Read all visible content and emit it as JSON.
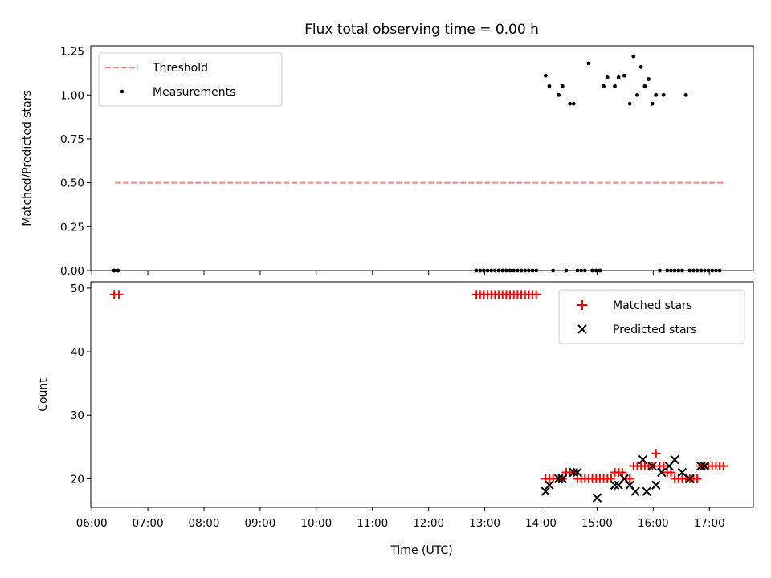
{
  "chart_data": [
    {
      "type": "line+scatter",
      "title": "Flux total observing time = 0.00 h",
      "ylabel": "Matched/Predicted stars",
      "xlabel": "",
      "xlim": [
        "05:59",
        "17:47"
      ],
      "ylim": [
        0,
        1.28
      ],
      "yticks": [
        "0.00",
        "0.25",
        "0.50",
        "0.75",
        "1.00",
        "1.25"
      ],
      "legend": {
        "placement": "top-left",
        "entries": [
          {
            "name": "Threshold",
            "color": "#ff7f7f",
            "style": "dashed"
          },
          {
            "name": "Measurements",
            "color": "#000000",
            "style": "dot"
          }
        ]
      },
      "series": [
        {
          "name": "Threshold",
          "type": "line",
          "color": "#ff7f7f",
          "x": [
            "06:25",
            "17:15"
          ],
          "y": [
            0.5,
            0.5
          ]
        },
        {
          "name": "Measurements",
          "type": "scatter",
          "color": "#000000",
          "x": [
            "06:24",
            "06:28",
            "12:51",
            "12:55",
            "12:59",
            "13:03",
            "13:07",
            "13:11",
            "13:15",
            "13:19",
            "13:23",
            "13:27",
            "13:31",
            "13:35",
            "13:39",
            "13:43",
            "13:47",
            "13:51",
            "13:55",
            "14:05",
            "14:09",
            "14:13",
            "14:19",
            "14:23",
            "14:27",
            "14:31",
            "14:35",
            "14:39",
            "14:43",
            "14:47",
            "14:51",
            "14:55",
            "14:59",
            "15:03",
            "15:07",
            "15:11",
            "15:19",
            "15:23",
            "15:29",
            "15:35",
            "15:39",
            "15:43",
            "15:47",
            "15:51",
            "15:55",
            "15:59",
            "16:03",
            "16:07",
            "16:11",
            "16:15",
            "16:19",
            "16:23",
            "16:27",
            "16:31",
            "16:35",
            "16:39",
            "16:43",
            "16:47",
            "16:51",
            "16:55",
            "16:59",
            "17:03",
            "17:07",
            "17:11"
          ],
          "y": [
            0,
            0,
            0,
            0,
            0,
            0,
            0,
            0,
            0,
            0,
            0,
            0,
            0,
            0,
            0,
            0,
            0,
            0,
            0,
            1.11,
            1.05,
            0,
            1.0,
            1.05,
            0,
            0.95,
            0.95,
            0,
            0,
            0,
            1.18,
            0,
            0,
            0,
            1.05,
            1.1,
            1.05,
            1.1,
            1.11,
            0.95,
            1.22,
            1.0,
            1.16,
            1.05,
            1.09,
            0.95,
            1.0,
            0,
            1.0,
            0,
            0,
            0,
            0,
            0,
            1.0,
            0,
            0,
            0,
            0,
            0,
            0,
            0,
            0,
            0
          ]
        }
      ]
    },
    {
      "type": "scatter",
      "title": "",
      "ylabel": "Count",
      "xlabel": "Time (UTC)",
      "xlim": [
        "05:59",
        "17:47"
      ],
      "ylim": [
        15.5,
        51
      ],
      "yticks": [
        "20",
        "30",
        "40",
        "50"
      ],
      "xticks": [
        "06:00",
        "07:00",
        "08:00",
        "09:00",
        "10:00",
        "11:00",
        "12:00",
        "13:00",
        "14:00",
        "15:00",
        "16:00",
        "17:00"
      ],
      "legend": {
        "placement": "top-right",
        "entries": [
          {
            "name": "Matched stars",
            "color": "#ff0000",
            "marker": "+"
          },
          {
            "name": "Predicted stars",
            "color": "#000000",
            "marker": "x"
          }
        ]
      },
      "series": [
        {
          "name": "Matched stars",
          "type": "scatter",
          "marker": "+",
          "color": "#ff0000",
          "x": [
            "06:24",
            "06:29",
            "12:51",
            "12:55",
            "12:59",
            "13:03",
            "13:07",
            "13:11",
            "13:15",
            "13:19",
            "13:23",
            "13:27",
            "13:31",
            "13:35",
            "13:39",
            "13:43",
            "13:47",
            "13:51",
            "13:55",
            "14:05",
            "14:09",
            "14:13",
            "14:19",
            "14:23",
            "14:27",
            "14:31",
            "14:35",
            "14:39",
            "14:43",
            "14:47",
            "14:51",
            "14:55",
            "14:59",
            "15:03",
            "15:07",
            "15:11",
            "15:15",
            "15:19",
            "15:23",
            "15:27",
            "15:31",
            "15:35",
            "15:39",
            "15:43",
            "15:47",
            "15:51",
            "15:55",
            "15:59",
            "16:03",
            "16:07",
            "16:11",
            "16:15",
            "16:19",
            "16:23",
            "16:27",
            "16:31",
            "16:35",
            "16:39",
            "16:43",
            "16:47",
            "16:51",
            "16:55",
            "16:59",
            "17:03",
            "17:07",
            "17:11",
            "17:15"
          ],
          "y": [
            49,
            49,
            49,
            49,
            49,
            49,
            49,
            49,
            49,
            49,
            49,
            49,
            49,
            49,
            49,
            49,
            49,
            49,
            49,
            20,
            20,
            20,
            20,
            20,
            21,
            21,
            21,
            20,
            20,
            20,
            20,
            20,
            20,
            20,
            20,
            20,
            20,
            21,
            21,
            21,
            20,
            20,
            22,
            22,
            22,
            22,
            22,
            22,
            24,
            22,
            22,
            21,
            21,
            20,
            20,
            20,
            20,
            20,
            20,
            20,
            22,
            22,
            22,
            22,
            22,
            22,
            22
          ]
        },
        {
          "name": "Predicted stars",
          "type": "scatter",
          "marker": "x",
          "color": "#000000",
          "x": [
            "14:05",
            "14:09",
            "14:19",
            "14:23",
            "14:35",
            "14:39",
            "15:00",
            "15:19",
            "15:23",
            "15:29",
            "15:35",
            "15:41",
            "15:49",
            "15:53",
            "15:59",
            "16:03",
            "16:09",
            "16:17",
            "16:23",
            "16:31",
            "16:39",
            "16:51",
            "16:55"
          ],
          "y": [
            18,
            19,
            20,
            20,
            21,
            21,
            17,
            19,
            19,
            20,
            19,
            18,
            23,
            18,
            22,
            19,
            21,
            22,
            23,
            21,
            20,
            22,
            22
          ]
        }
      ]
    }
  ]
}
